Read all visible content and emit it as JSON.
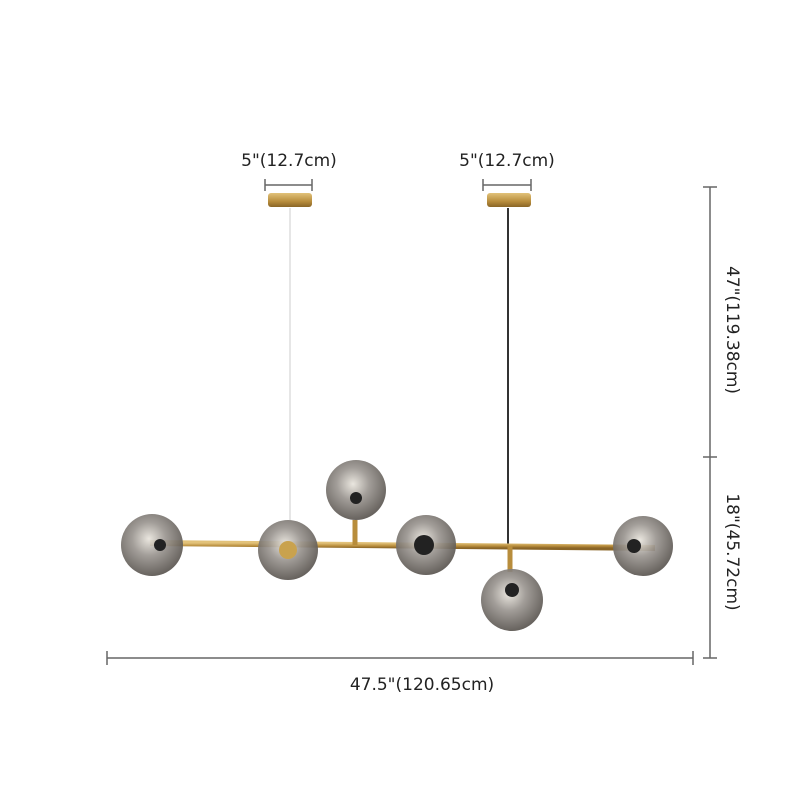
{
  "dimensions": {
    "canopy_left": "5\"(12.7cm)",
    "canopy_right": "5\"(12.7cm)",
    "drop_height": "47\"(119.38cm)",
    "fixture_height": "18\"(45.72cm)",
    "length": "47.5\"(120.65cm)"
  }
}
